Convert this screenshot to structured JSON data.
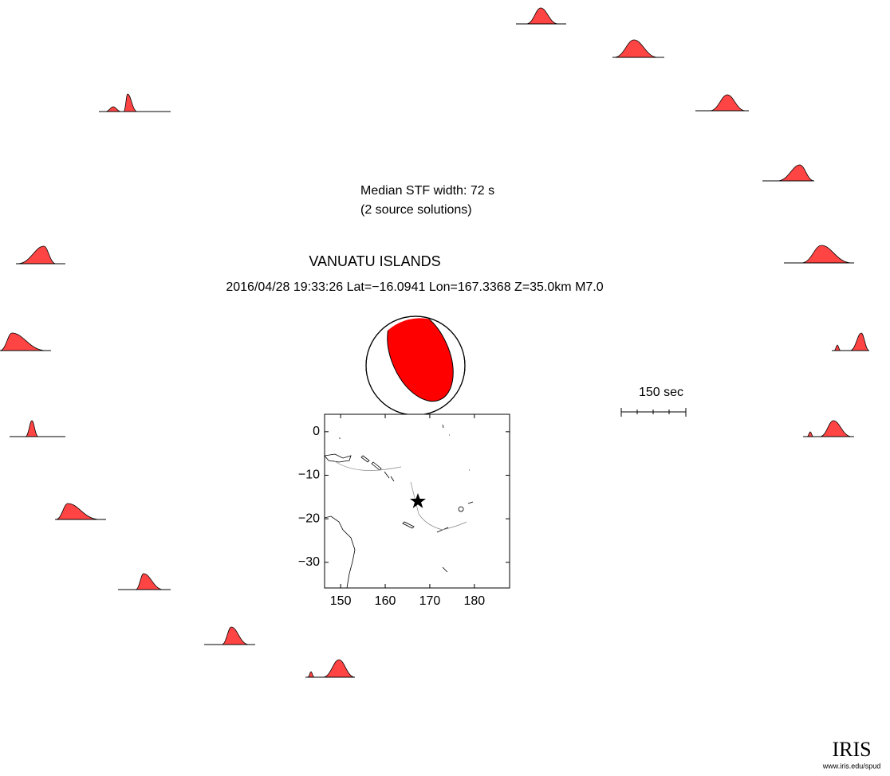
{
  "header": {
    "median": "Median STF width: 72 s",
    "solutions": "(2 source solutions)",
    "region": "VANUATU ISLANDS",
    "event": "2016/04/28 19:33:26  Lat=−16.0941 Lon=167.3368  Z=35.0km  M7.0"
  },
  "scale_label": "150 sec",
  "map": {
    "xlim": [
      146.4,
      187.9
    ],
    "ylim": [
      -35.9,
      4
    ],
    "xticks": [
      150,
      160,
      170,
      180
    ],
    "yticks": [
      {
        "value": 0,
        "label": "0"
      },
      {
        "value": -10,
        "label": "−10"
      },
      {
        "value": -20,
        "label": "−20"
      },
      {
        "value": -30,
        "label": "−30"
      }
    ]
  },
  "logo": {
    "name": "IRIS",
    "url": "www.iris.edu/spud"
  }
}
